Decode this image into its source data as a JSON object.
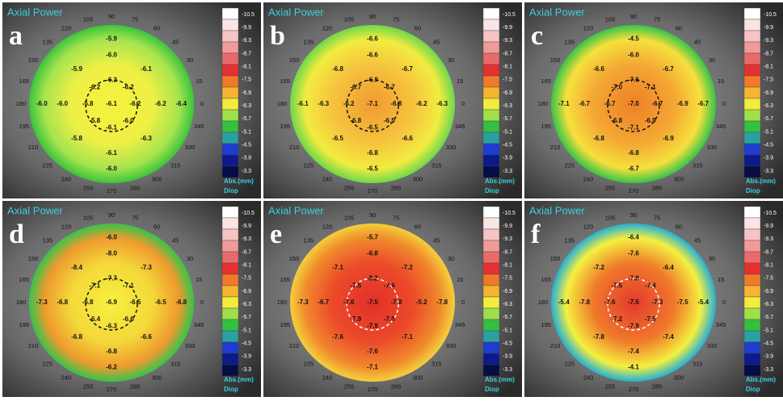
{
  "panels": [
    {
      "letter": "a",
      "title": "Axial Power",
      "values": [
        "-6.1",
        "-6.2",
        "-6.2",
        "-6.2",
        "-6.2",
        "-5.8",
        "-5.8",
        "-6.1",
        "-6.0",
        "-6.2",
        "-6.1",
        "-6.0",
        "-5.9",
        "-6.0",
        "-5.8",
        "-6.1",
        "-6.3",
        "-6.4",
        "-5.9",
        "-6.0",
        "-6.0"
      ]
    },
    {
      "letter": "b",
      "title": "Axial Power",
      "values": [
        "-7.1",
        "-6.8",
        "-6.7",
        "-6.9",
        "-6.7",
        "-6.2",
        "-6.8",
        "-6.5",
        "-6.5",
        "-6.2",
        "-6.7",
        "-6.6",
        "-6.8",
        "-6.3",
        "-6.5",
        "-6.8",
        "-6.6",
        "-6.3",
        "-6.6",
        "-6.1",
        "-6.5"
      ]
    },
    {
      "letter": "c",
      "title": "Axial Power",
      "values": [
        "-7.0",
        "-6.7",
        "-7.1",
        "-7.6",
        "-7.0",
        "-6.7",
        "-6.8",
        "-7.1",
        "-6.9",
        "-6.9",
        "-6.7",
        "-6.0",
        "-6.6",
        "-6.7",
        "-6.8",
        "-6.8",
        "-6.9",
        "-6.7",
        "-4.5",
        "-7.1",
        "-6.7"
      ]
    },
    {
      "letter": "d",
      "title": "Axial Power",
      "values": [
        "-6.9",
        "-6.5",
        "-7.1",
        "-7.7",
        "-7.1",
        "-6.8",
        "-6.4",
        "-6.3",
        "-6.6",
        "-6.5",
        "-7.3",
        "-8.0",
        "-8.4",
        "-6.8",
        "-6.8",
        "-6.8",
        "-6.6",
        "-6.8",
        "-6.0",
        "-7.3",
        "-6.2"
      ]
    },
    {
      "letter": "e",
      "title": "Axial Power",
      "values": [
        "-7.5",
        "-7.8",
        "-7.6",
        "-8.2",
        "-7.5",
        "-7.6",
        "-7.9",
        "-7.9",
        "-7.0",
        "-5.2",
        "-7.2",
        "-6.8",
        "-7.1",
        "-6.7",
        "-7.6",
        "-7.6",
        "-7.1",
        "-7.8",
        "-5.7",
        "-7.3",
        "-7.1"
      ]
    },
    {
      "letter": "f",
      "title": "Axial Power",
      "values": [
        "-7.5",
        "-7.3",
        "-7.4",
        "-7.8",
        "-7.5",
        "-7.6",
        "-7.2",
        "-7.9",
        "-7.5",
        "-7.5",
        "-6.4",
        "-7.6",
        "-7.2",
        "-7.8",
        "-7.8",
        "-7.4",
        "-7.4",
        "-5.4",
        "-6.4",
        "-5.4",
        "-4.1"
      ]
    }
  ],
  "angle_labels": [
    "0",
    "15",
    "30",
    "45",
    "60",
    "75",
    "90",
    "105",
    "120",
    "135",
    "150",
    "165",
    "180",
    "195",
    "210",
    "225",
    "240",
    "255",
    "270",
    "285",
    "300",
    "315",
    "330",
    "345"
  ],
  "scale_labels": [
    "-10.5",
    "-9.9",
    "-9.3",
    "-8.7",
    "-8.1",
    "-7.5",
    "-6.9",
    "-6.3",
    "-5.7",
    "-5.1",
    "-4.5",
    "-3.9",
    "-3.3"
  ],
  "unit_label": "Abs.(mm)",
  "diop_label": "Diop"
}
